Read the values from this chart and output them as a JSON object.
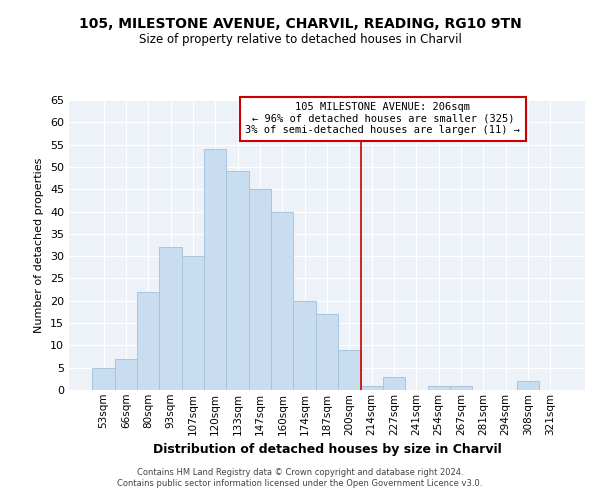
{
  "title": "105, MILESTONE AVENUE, CHARVIL, READING, RG10 9TN",
  "subtitle": "Size of property relative to detached houses in Charvil",
  "xlabel": "Distribution of detached houses by size in Charvil",
  "ylabel": "Number of detached properties",
  "bar_labels": [
    "53sqm",
    "66sqm",
    "80sqm",
    "93sqm",
    "107sqm",
    "120sqm",
    "133sqm",
    "147sqm",
    "160sqm",
    "174sqm",
    "187sqm",
    "200sqm",
    "214sqm",
    "227sqm",
    "241sqm",
    "254sqm",
    "267sqm",
    "281sqm",
    "294sqm",
    "308sqm",
    "321sqm"
  ],
  "bar_heights": [
    5,
    7,
    22,
    32,
    30,
    54,
    49,
    45,
    40,
    20,
    17,
    9,
    1,
    3,
    0,
    1,
    1,
    0,
    0,
    2,
    0
  ],
  "bar_color": "#c9ddf0",
  "bar_edge_color": "#aac4de",
  "vline_x_index": 11.5,
  "vline_color": "#cc0000",
  "annotation_title": "105 MILESTONE AVENUE: 206sqm",
  "annotation_line1": "← 96% of detached houses are smaller (325)",
  "annotation_line2": "3% of semi-detached houses are larger (11) →",
  "ylim": [
    0,
    65
  ],
  "yticks": [
    0,
    5,
    10,
    15,
    20,
    25,
    30,
    35,
    40,
    45,
    50,
    55,
    60,
    65
  ],
  "footer_line1": "Contains HM Land Registry data © Crown copyright and database right 2024.",
  "footer_line2": "Contains public sector information licensed under the Open Government Licence v3.0.",
  "bg_color": "#edf2f8"
}
